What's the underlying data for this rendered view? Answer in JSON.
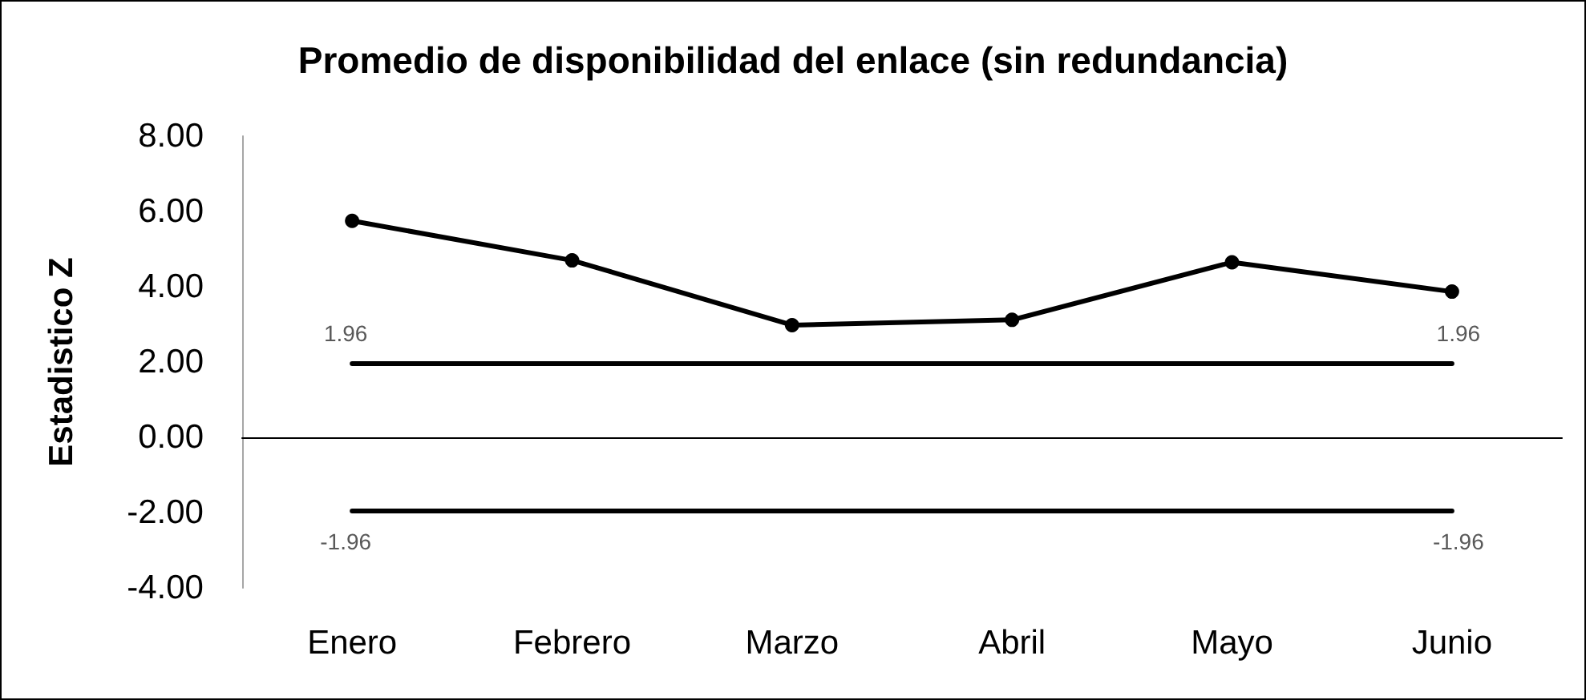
{
  "chart_data": {
    "type": "line",
    "title": "Promedio de disponibilidad del enlace (sin redundancia)",
    "ylabel": "Estadistico Z",
    "categories": [
      "Enero",
      "Febrero",
      "Marzo",
      "Abril",
      "Mayo",
      "Junio"
    ],
    "series": [
      {
        "color": "#000000",
        "values": [
          5.75,
          4.7,
          2.98,
          3.12,
          4.65,
          3.87
        ]
      },
      {
        "color": "#000000",
        "marker": "none",
        "values": [
          1.96,
          1.96,
          1.96,
          1.96,
          1.96,
          1.96
        ],
        "value_labels": [
          "1.96",
          null,
          null,
          null,
          null,
          "1.96"
        ]
      },
      {
        "color": "#000000",
        "marker": "none",
        "values": [
          -1.96,
          -1.96,
          -1.96,
          -1.96,
          -1.96,
          -1.96
        ],
        "value_labels": [
          "-1.96",
          null,
          null,
          null,
          null,
          "-1.96"
        ]
      }
    ],
    "ylim": [
      -4,
      8
    ],
    "yticks": [
      {
        "value": -4,
        "label": "-4.00"
      },
      {
        "value": -2,
        "label": "-2.00"
      },
      {
        "value": 0,
        "label": "0.00"
      },
      {
        "value": 2,
        "label": "2.00"
      },
      {
        "value": 4,
        "label": "4.00"
      },
      {
        "value": 6,
        "label": "6.00"
      },
      {
        "value": 8,
        "label": "8.00"
      }
    ],
    "marker": "circle",
    "line_style": "solid",
    "grid": false
  }
}
